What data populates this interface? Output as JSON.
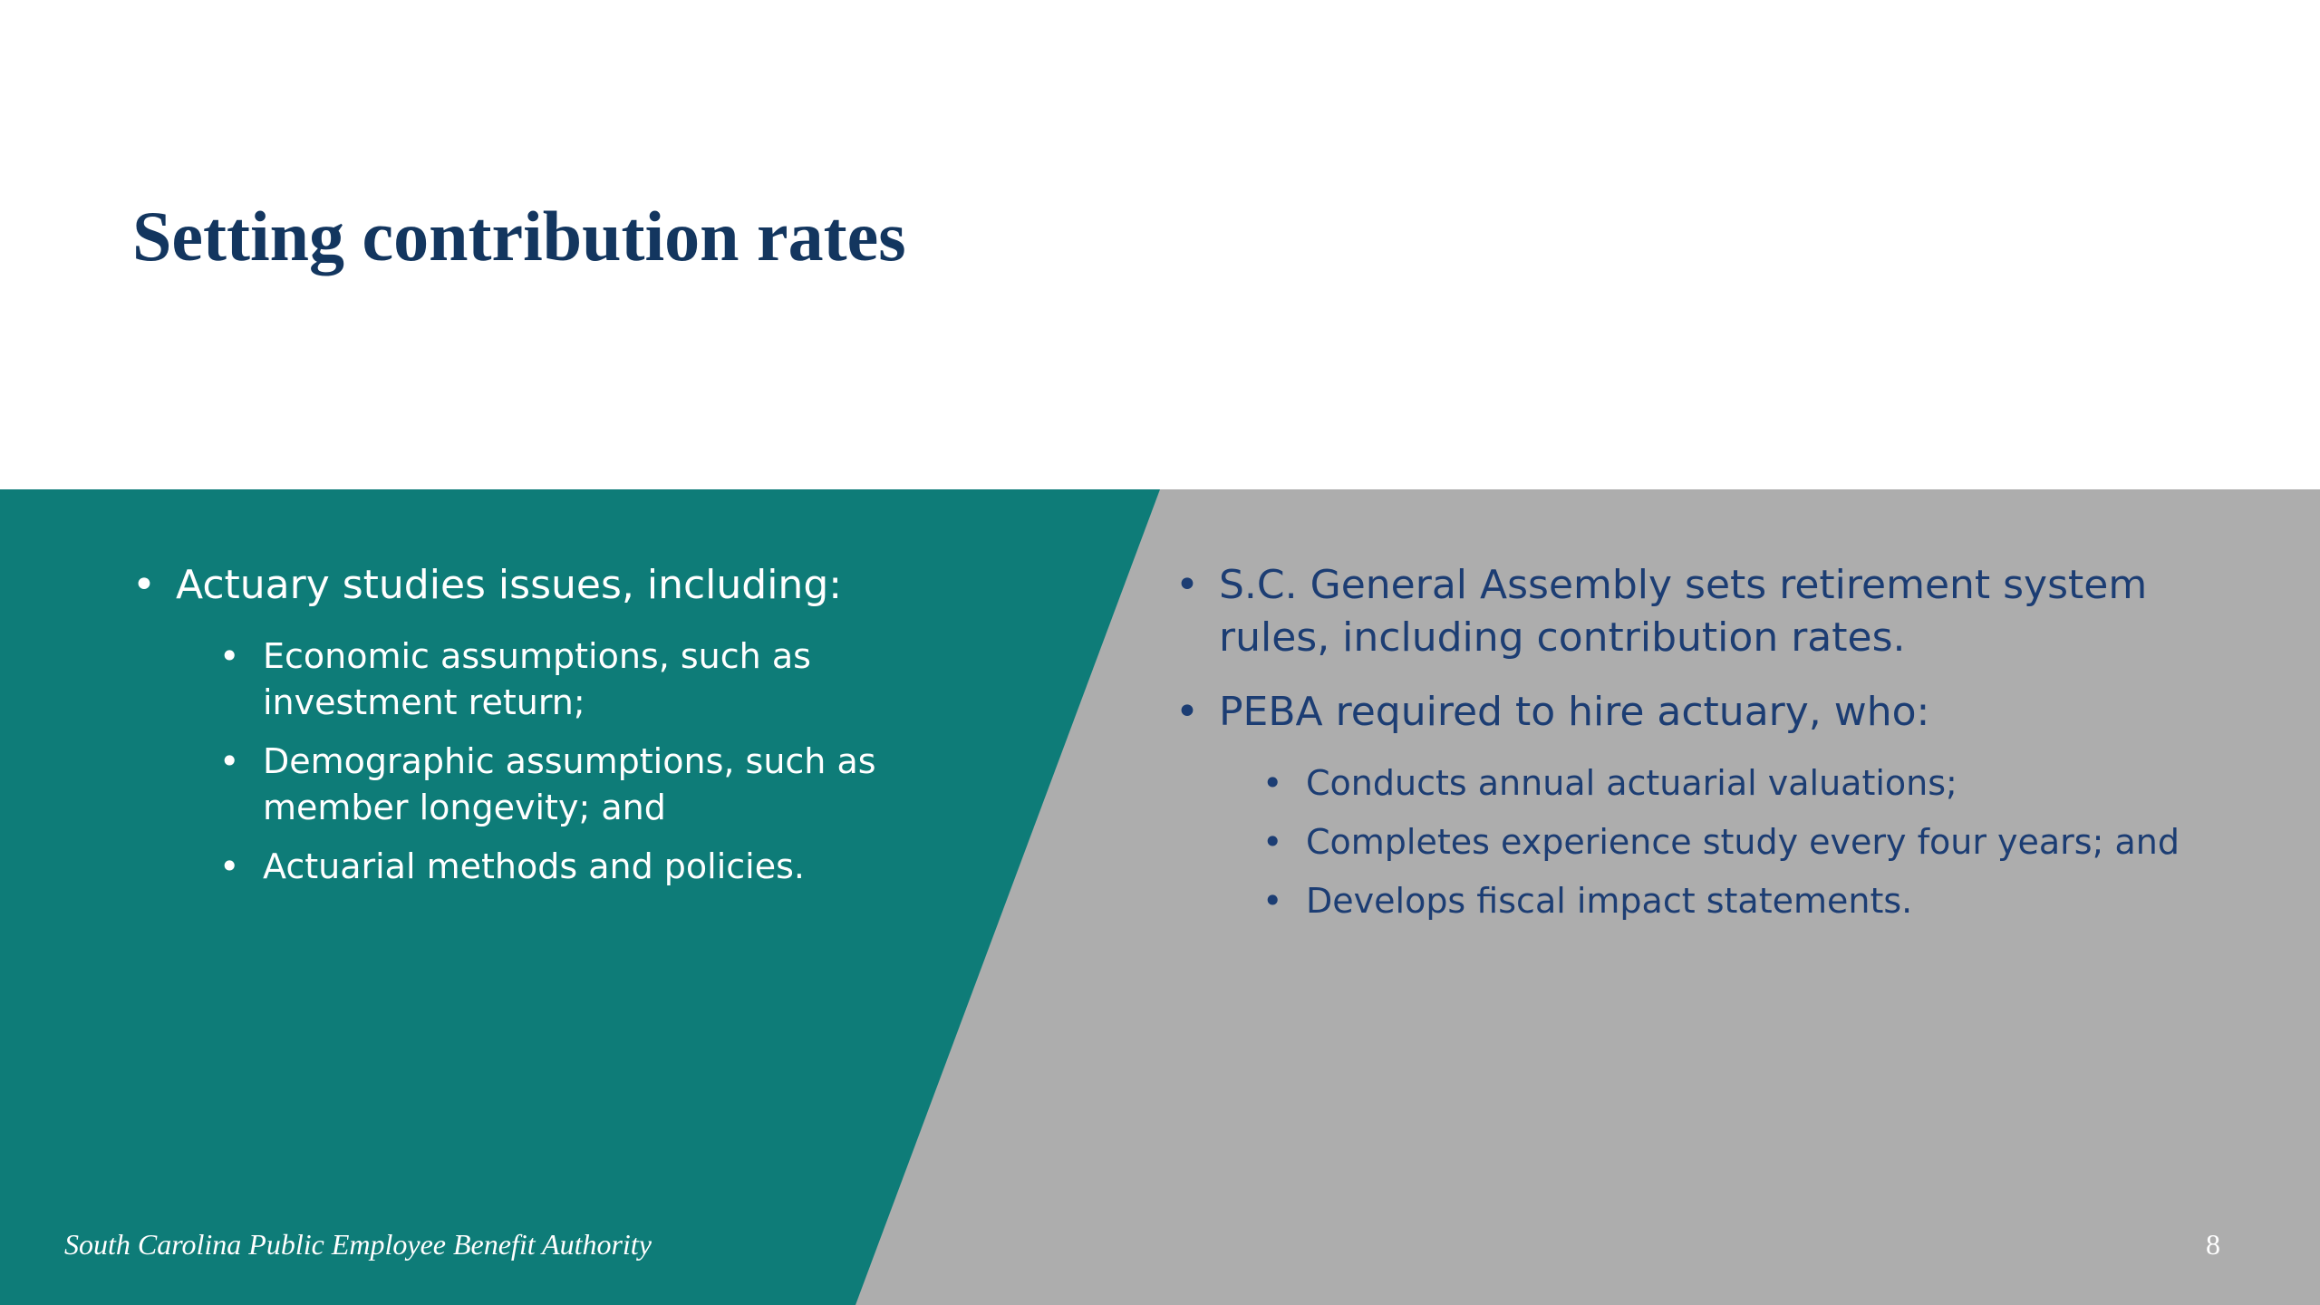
{
  "slide": {
    "title": "Setting contribution rates",
    "colors": {
      "title": "#13365f",
      "teal_panel": "#0e7c78",
      "gray_panel": "#adadad",
      "right_text": "#1c3d73",
      "left_text": "#ffffff"
    },
    "bullet_glyph": "•",
    "left_column": {
      "heading": "Actuary studies issues, including:",
      "subitems": [
        "Economic assumptions, such as investment return;",
        "Demographic assumptions, such as member longevity; and",
        "Actuarial methods and policies."
      ]
    },
    "right_column": {
      "item1": "S.C. General Assembly sets retirement system rules, including contribution rates.",
      "item2": "PEBA required to hire actuary, who:",
      "subitems": [
        "Conducts annual actuarial valuations;",
        "Completes experience study every four years; and",
        "Develops fiscal impact statements."
      ]
    },
    "footer": {
      "organization": "South Carolina Public Employee Benefit Authority",
      "page_number": "8"
    }
  }
}
